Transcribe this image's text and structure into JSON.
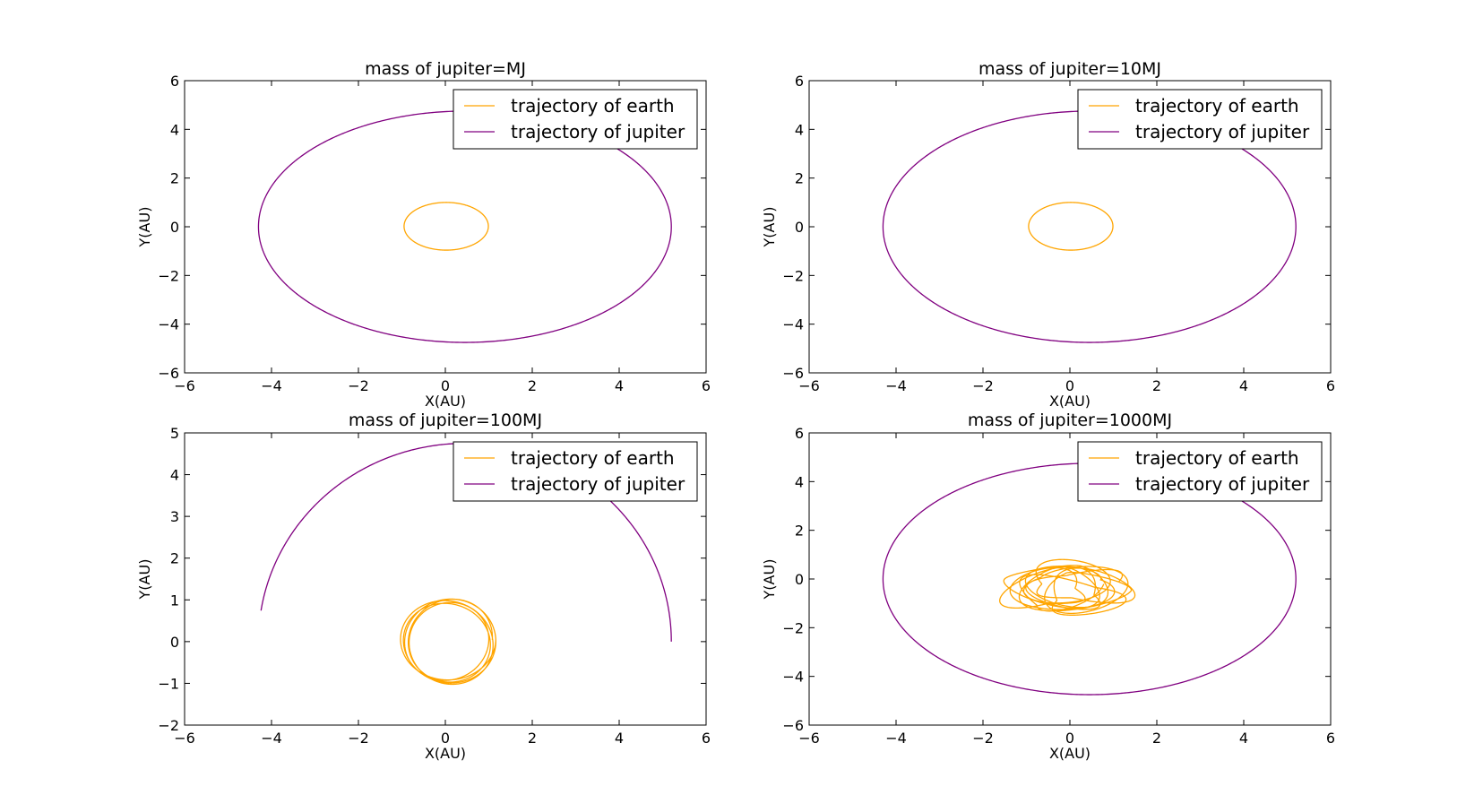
{
  "colors": {
    "earth": "#ffa500",
    "jupiter": "#800080",
    "frame": "#000000",
    "background": "#ffffff"
  },
  "chart_data": [
    {
      "type": "line",
      "title": "mass of jupiter=MJ",
      "xlabel": "X(AU)",
      "ylabel": "Y(AU)",
      "xlim": [
        -6,
        6
      ],
      "ylim": [
        -6,
        6
      ],
      "xticks": [
        -6,
        -4,
        -2,
        0,
        2,
        4,
        6
      ],
      "yticks": [
        -6,
        -4,
        -2,
        0,
        2,
        4,
        6
      ],
      "xtick_labels": [
        "−6",
        "−4",
        "−2",
        "0",
        "2",
        "4",
        "6"
      ],
      "ytick_labels": [
        "−6",
        "−4",
        "−2",
        "0",
        "2",
        "4",
        "6"
      ],
      "grid": false,
      "legend_position": "top-right",
      "series": [
        {
          "name": "trajectory of earth",
          "color": "#ffa500",
          "kind": "orbit",
          "center": [
            0.02,
            0.02
          ],
          "radius_x": 0.97,
          "radius_y": 0.98,
          "loops": 1,
          "start_angle": 0,
          "sweep": 360
        },
        {
          "name": "trajectory of jupiter",
          "color": "#800080",
          "kind": "orbit",
          "center": [
            0.45,
            0.0
          ],
          "radius_x": 4.75,
          "radius_y": 4.75,
          "loops": 1,
          "start_angle": 0,
          "sweep": 360
        }
      ]
    },
    {
      "type": "line",
      "title": "mass of jupiter=10MJ",
      "xlabel": "X(AU)",
      "ylabel": "Y(AU)",
      "xlim": [
        -6,
        6
      ],
      "ylim": [
        -6,
        6
      ],
      "xticks": [
        -6,
        -4,
        -2,
        0,
        2,
        4,
        6
      ],
      "yticks": [
        -6,
        -4,
        -2,
        0,
        2,
        4,
        6
      ],
      "xtick_labels": [
        "−6",
        "−4",
        "−2",
        "0",
        "2",
        "4",
        "6"
      ],
      "ytick_labels": [
        "−6",
        "−4",
        "−2",
        "0",
        "2",
        "4",
        "6"
      ],
      "grid": false,
      "legend_position": "top-right",
      "series": [
        {
          "name": "trajectory of earth",
          "color": "#ffa500",
          "kind": "orbit",
          "center": [
            0.02,
            0.02
          ],
          "radius_x": 0.97,
          "radius_y": 0.98,
          "loops": 1,
          "start_angle": 0,
          "sweep": 360
        },
        {
          "name": "trajectory of jupiter",
          "color": "#800080",
          "kind": "orbit",
          "center": [
            0.45,
            0.0
          ],
          "radius_x": 4.75,
          "radius_y": 4.75,
          "loops": 1,
          "start_angle": 0,
          "sweep": 360
        }
      ]
    },
    {
      "type": "line",
      "title": "mass of jupiter=100MJ",
      "xlabel": "X(AU)",
      "ylabel": "Y(AU)",
      "xlim": [
        -6,
        6
      ],
      "ylim": [
        -2,
        5
      ],
      "xticks": [
        -6,
        -4,
        -2,
        0,
        2,
        4,
        6
      ],
      "yticks": [
        -2,
        -1,
        0,
        1,
        2,
        3,
        4,
        5
      ],
      "xtick_labels": [
        "−6",
        "−4",
        "−2",
        "0",
        "2",
        "4",
        "6"
      ],
      "ytick_labels": [
        "−2",
        "−1",
        "0",
        "1",
        "2",
        "3",
        "4",
        "5"
      ],
      "grid": false,
      "legend_position": "top-right",
      "series": [
        {
          "name": "trajectory of earth",
          "color": "#ffa500",
          "kind": "orbit",
          "center": [
            0.08,
            0.0
          ],
          "radius_x": 1.0,
          "radius_y": 0.97,
          "loops": 5,
          "start_angle": 0,
          "sweep": 360
        },
        {
          "name": "trajectory of jupiter",
          "color": "#800080",
          "kind": "orbit",
          "center": [
            0.45,
            0.0
          ],
          "radius_x": 4.75,
          "radius_y": 4.75,
          "loops": 1,
          "start_angle": 0,
          "sweep": 171
        }
      ]
    },
    {
      "type": "line",
      "title": "mass of jupiter=1000MJ",
      "xlabel": "X(AU)",
      "ylabel": "Y(AU)",
      "xlim": [
        -6,
        6
      ],
      "ylim": [
        -6,
        6
      ],
      "xticks": [
        -6,
        -4,
        -2,
        0,
        2,
        4,
        6
      ],
      "yticks": [
        -6,
        -4,
        -2,
        0,
        2,
        4,
        6
      ],
      "xtick_labels": [
        "−6",
        "−4",
        "−2",
        "0",
        "2",
        "4",
        "6"
      ],
      "ytick_labels": [
        "−6",
        "−4",
        "−2",
        "0",
        "2",
        "4",
        "6"
      ],
      "grid": false,
      "legend_position": "top-right",
      "series": [
        {
          "name": "trajectory of earth",
          "color": "#ffa500",
          "kind": "tangle",
          "center": [
            0.0,
            -0.35
          ],
          "radius_x": 1.35,
          "radius_y": 1.05,
          "loops": 11,
          "start_angle": 0,
          "sweep": 360
        },
        {
          "name": "trajectory of jupiter",
          "color": "#800080",
          "kind": "orbit",
          "center": [
            0.45,
            0.0
          ],
          "radius_x": 4.75,
          "radius_y": 4.75,
          "loops": 1,
          "start_angle": 0,
          "sweep": 360
        }
      ]
    }
  ]
}
